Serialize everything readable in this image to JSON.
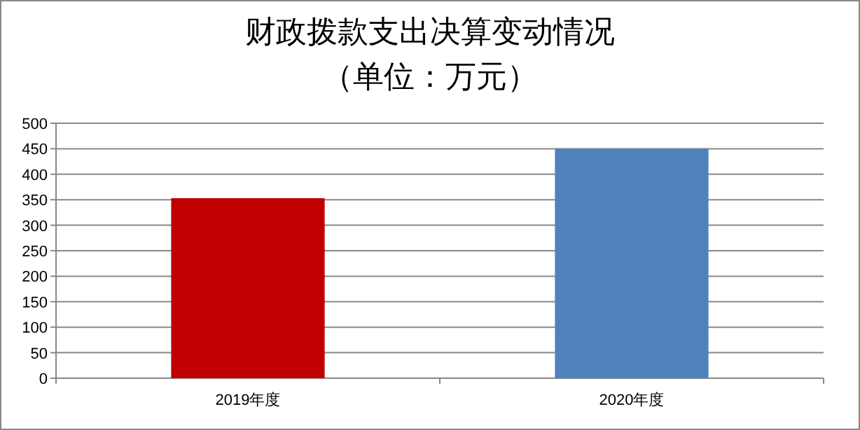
{
  "chart_data": {
    "type": "bar",
    "title": "财政拨款支出决算变动情况",
    "subtitle": "（单位：万元）",
    "categories": [
      "2019年度",
      "2020年度"
    ],
    "values": [
      353,
      450
    ],
    "colors": [
      "#c00000",
      "#4f81bd"
    ],
    "ylim": [
      0,
      500
    ],
    "yticks": [
      0,
      50,
      100,
      150,
      200,
      250,
      300,
      350,
      400,
      450,
      500
    ],
    "grid": "y"
  }
}
